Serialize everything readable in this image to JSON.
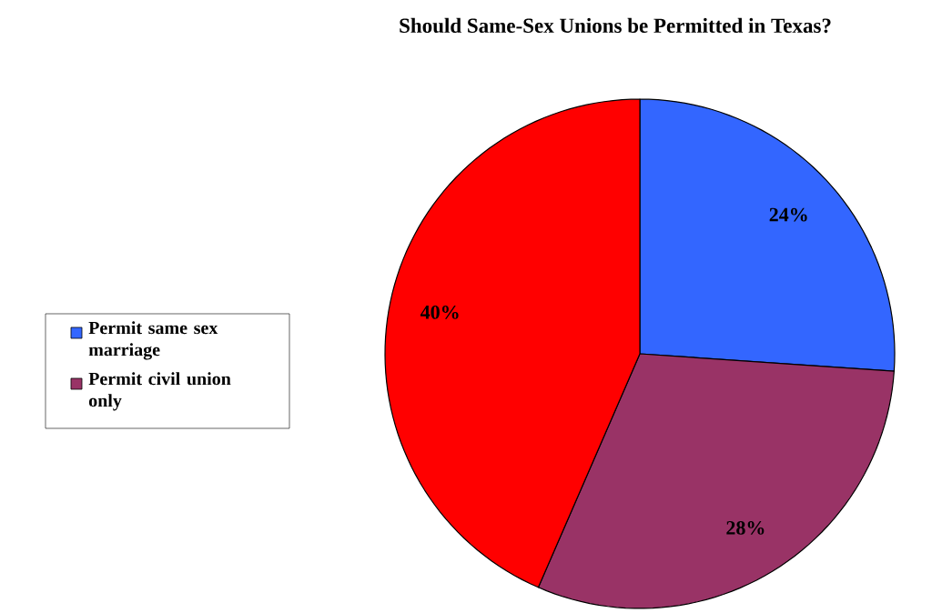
{
  "chart_data": {
    "type": "pie",
    "title": "Should Same-Sex Unions be Permitted in Texas?",
    "categories": [
      "Permit same sex marriage",
      "Permit civil union only",
      null
    ],
    "values": [
      24,
      28,
      40
    ],
    "colors": [
      "#3366ff",
      "#993366",
      "#ff0000"
    ],
    "value_labels": [
      "24%",
      "28%",
      "40%"
    ],
    "legend": "left"
  }
}
